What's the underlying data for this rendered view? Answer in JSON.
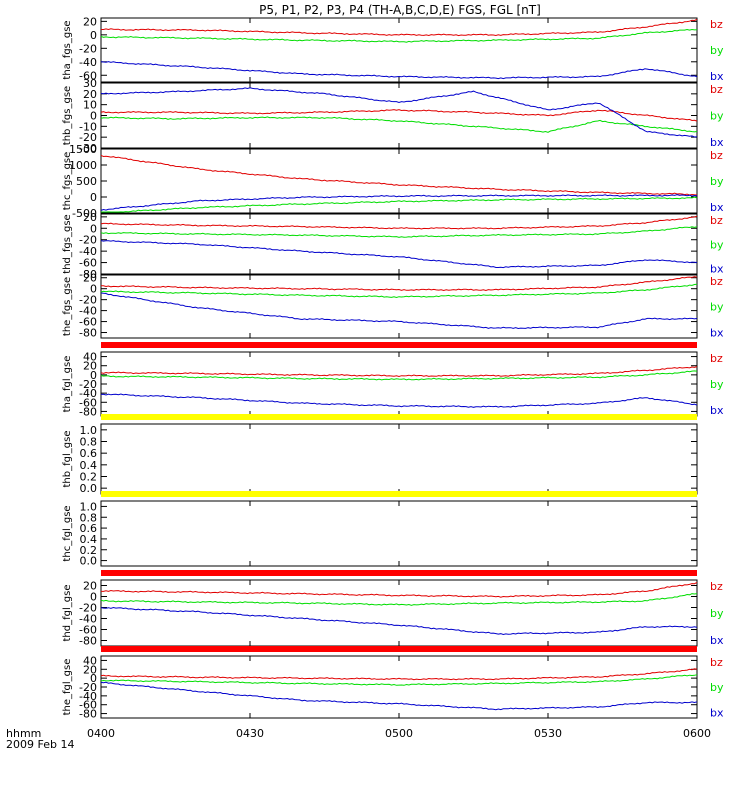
{
  "title": "P5, P1, P2, P3, P4 (TH-A,B,C,D,E) FGS, FGL [nT]",
  "colors": {
    "bz": "#e00000",
    "by": "#00dd00",
    "bx": "#0000cc",
    "bar_red": "#ff0000",
    "bar_yellow": "#ffff00",
    "bar_black": "#000000"
  },
  "xaxis": {
    "ticks": [
      "0400",
      "0430",
      "0500",
      "0530",
      "0600"
    ],
    "tick_hours": [
      4.0,
      4.5,
      5.0,
      5.5,
      6.0
    ],
    "range": [
      4.0,
      6.0
    ],
    "label_line1": "hhmm",
    "label_line2": "2009 Feb 14"
  },
  "chart_data": [
    {
      "type": "line",
      "ylabel": "tha_fgs_gse",
      "ylim": [
        -70,
        25
      ],
      "yticks": [
        "20",
        "0",
        "-20",
        "-40",
        "-60"
      ],
      "ytick_values": [
        20,
        0,
        -20,
        -40,
        -60
      ],
      "legend": [
        "bz",
        "by",
        "bx"
      ],
      "bar_above": null,
      "x": [
        4.0,
        4.33,
        4.67,
        5.0,
        5.33,
        5.67,
        5.83,
        6.0
      ],
      "series": [
        {
          "name": "bz",
          "values": [
            8,
            7,
            3,
            0,
            0,
            4,
            12,
            22
          ]
        },
        {
          "name": "by",
          "values": [
            -3,
            -5,
            -8,
            -10,
            -8,
            -5,
            3,
            8
          ]
        },
        {
          "name": "bx",
          "values": [
            -40,
            -48,
            -58,
            -62,
            -64,
            -62,
            -50,
            -62
          ]
        }
      ]
    },
    {
      "type": "line",
      "ylabel": "thb_fgs_gse",
      "ylim": [
        -30,
        30
      ],
      "yticks": [
        "30",
        "20",
        "10",
        "0",
        "-10",
        "-20",
        "-30"
      ],
      "ytick_values": [
        30,
        20,
        10,
        0,
        -10,
        -20,
        -30
      ],
      "legend": [
        "bz",
        "by",
        "bx"
      ],
      "bar_above": null,
      "x": [
        4.0,
        4.25,
        4.5,
        4.75,
        5.0,
        5.25,
        5.5,
        5.67,
        5.83,
        6.0
      ],
      "series": [
        {
          "name": "bz",
          "values": [
            3,
            3,
            2,
            3,
            5,
            3,
            0,
            5,
            0,
            -5
          ]
        },
        {
          "name": "by",
          "values": [
            -2,
            -3,
            -2,
            -2,
            -5,
            -10,
            -15,
            -5,
            -10,
            -15
          ]
        },
        {
          "name": "bx",
          "values": [
            20,
            22,
            25,
            20,
            12,
            22,
            5,
            12,
            -15,
            -20
          ]
        }
      ]
    },
    {
      "type": "line",
      "ylabel": "thc_fgs_gse",
      "ylim": [
        -500,
        1500
      ],
      "yticks": [
        "1500",
        "1000",
        "500",
        "0",
        "-500"
      ],
      "ytick_values": [
        1500,
        1000,
        500,
        0,
        -500
      ],
      "legend": [
        "bz",
        "by",
        "bx"
      ],
      "bar_above": null,
      "x": [
        4.0,
        4.33,
        4.67,
        5.0,
        5.33,
        5.67,
        6.0
      ],
      "series": [
        {
          "name": "bz",
          "values": [
            1300,
            870,
            570,
            380,
            240,
            140,
            80
          ]
        },
        {
          "name": "by",
          "values": [
            -500,
            -330,
            -220,
            -140,
            -90,
            -60,
            -30
          ]
        },
        {
          "name": "bx",
          "values": [
            -400,
            -120,
            -10,
            30,
            40,
            45,
            50
          ]
        }
      ]
    },
    {
      "type": "line",
      "ylabel": "thd_fgs_gse",
      "ylim": [
        -80,
        25
      ],
      "yticks": [
        "20",
        "0",
        "-20",
        "-40",
        "-60",
        "-80"
      ],
      "ytick_values": [
        20,
        0,
        -20,
        -40,
        -60,
        -80
      ],
      "legend": [
        "bz",
        "by",
        "bx"
      ],
      "bar_above": null,
      "x": [
        4.0,
        4.33,
        4.67,
        5.0,
        5.33,
        5.67,
        5.83,
        6.0
      ],
      "series": [
        {
          "name": "bz",
          "values": [
            8,
            5,
            3,
            0,
            0,
            4,
            10,
            20
          ]
        },
        {
          "name": "by",
          "values": [
            -8,
            -10,
            -12,
            -15,
            -12,
            -10,
            -5,
            3
          ]
        },
        {
          "name": "bx",
          "values": [
            -22,
            -28,
            -40,
            -50,
            -68,
            -65,
            -55,
            -60
          ]
        }
      ]
    },
    {
      "type": "line",
      "ylabel": "the_fgs_gse",
      "ylim": [
        -90,
        25
      ],
      "yticks": [
        "20",
        "0",
        "-20",
        "-40",
        "-60",
        "-80"
      ],
      "ytick_values": [
        20,
        0,
        -20,
        -40,
        -60,
        -80
      ],
      "legend": [
        "bz",
        "by",
        "bx"
      ],
      "bar_above": null,
      "x": [
        4.0,
        4.33,
        4.67,
        5.0,
        5.33,
        5.67,
        5.83,
        6.0
      ],
      "series": [
        {
          "name": "bz",
          "values": [
            5,
            2,
            0,
            -2,
            -2,
            3,
            12,
            22
          ]
        },
        {
          "name": "by",
          "values": [
            -5,
            -8,
            -12,
            -15,
            -12,
            -8,
            -2,
            8
          ]
        },
        {
          "name": "bx",
          "values": [
            -8,
            -35,
            -55,
            -60,
            -72,
            -70,
            -55,
            -55
          ]
        }
      ]
    },
    {
      "type": "line",
      "ylabel": "tha_fgl_gse",
      "ylim": [
        -90,
        50
      ],
      "yticks": [
        "40",
        "20",
        "0",
        "-20",
        "-40",
        "-60",
        "-80"
      ],
      "ytick_values": [
        40,
        20,
        0,
        -20,
        -40,
        -60,
        -80
      ],
      "legend": [
        "bz",
        "by",
        "bx"
      ],
      "bar_above": "bar_red",
      "x": [
        4.0,
        4.33,
        4.67,
        5.0,
        5.33,
        5.67,
        5.83,
        6.0
      ],
      "series": [
        {
          "name": "bz",
          "values": [
            5,
            3,
            0,
            -2,
            -2,
            3,
            10,
            18
          ]
        },
        {
          "name": "by",
          "values": [
            -3,
            -5,
            -8,
            -10,
            -8,
            -5,
            0,
            8
          ]
        },
        {
          "name": "bx",
          "values": [
            -42,
            -50,
            -62,
            -68,
            -70,
            -62,
            -50,
            -65
          ]
        }
      ]
    },
    {
      "type": "line",
      "ylabel": "thb_fgl_gse",
      "ylim": [
        -0.1,
        1.1
      ],
      "yticks": [
        "1.0",
        "0.8",
        "0.6",
        "0.4",
        "0.2",
        "0.0"
      ],
      "ytick_values": [
        1.0,
        0.8,
        0.6,
        0.4,
        0.2,
        0.0
      ],
      "legend": [],
      "bar_above": "bar_yellow",
      "x": [],
      "series": []
    },
    {
      "type": "line",
      "ylabel": "thc_fgl_gse",
      "ylim": [
        -0.1,
        1.1
      ],
      "yticks": [
        "1.0",
        "0.8",
        "0.6",
        "0.4",
        "0.2",
        "0.0"
      ],
      "ytick_values": [
        1.0,
        0.8,
        0.6,
        0.4,
        0.2,
        0.0
      ],
      "legend": [],
      "bar_above": "bar_yellow",
      "x": [],
      "series": []
    },
    {
      "type": "line",
      "ylabel": "thd_fgl_gse",
      "ylim": [
        -90,
        30
      ],
      "yticks": [
        "20",
        "0",
        "-20",
        "-40",
        "-60",
        "-80"
      ],
      "ytick_values": [
        20,
        0,
        -20,
        -40,
        -60,
        -80
      ],
      "legend": [
        "bz",
        "by",
        "bx"
      ],
      "bar_above": "bar_red",
      "x": [
        4.0,
        4.33,
        4.67,
        5.0,
        5.33,
        5.67,
        5.83,
        6.0
      ],
      "series": [
        {
          "name": "bz",
          "values": [
            10,
            8,
            5,
            2,
            0,
            3,
            10,
            25
          ]
        },
        {
          "name": "by",
          "values": [
            -8,
            -10,
            -12,
            -15,
            -12,
            -10,
            -8,
            5
          ]
        },
        {
          "name": "bx",
          "values": [
            -20,
            -28,
            -40,
            -52,
            -68,
            -65,
            -55,
            -55
          ]
        }
      ]
    },
    {
      "type": "line",
      "ylabel": "the_fgl_gse",
      "ylim": [
        -90,
        50
      ],
      "yticks": [
        "40",
        "20",
        "0",
        "-20",
        "-40",
        "-60",
        "-80"
      ],
      "ytick_values": [
        40,
        20,
        0,
        -20,
        -40,
        -60,
        -80
      ],
      "legend": [
        "bz",
        "by",
        "bx"
      ],
      "bar_above": "bar_red",
      "x": [
        4.0,
        4.33,
        4.67,
        5.0,
        5.33,
        5.67,
        5.83,
        6.0
      ],
      "series": [
        {
          "name": "bz",
          "values": [
            5,
            2,
            0,
            -2,
            -2,
            3,
            10,
            20
          ]
        },
        {
          "name": "by",
          "values": [
            -5,
            -8,
            -12,
            -15,
            -12,
            -8,
            -2,
            8
          ]
        },
        {
          "name": "bx",
          "values": [
            -10,
            -30,
            -50,
            -58,
            -70,
            -65,
            -55,
            -55
          ]
        }
      ]
    }
  ]
}
